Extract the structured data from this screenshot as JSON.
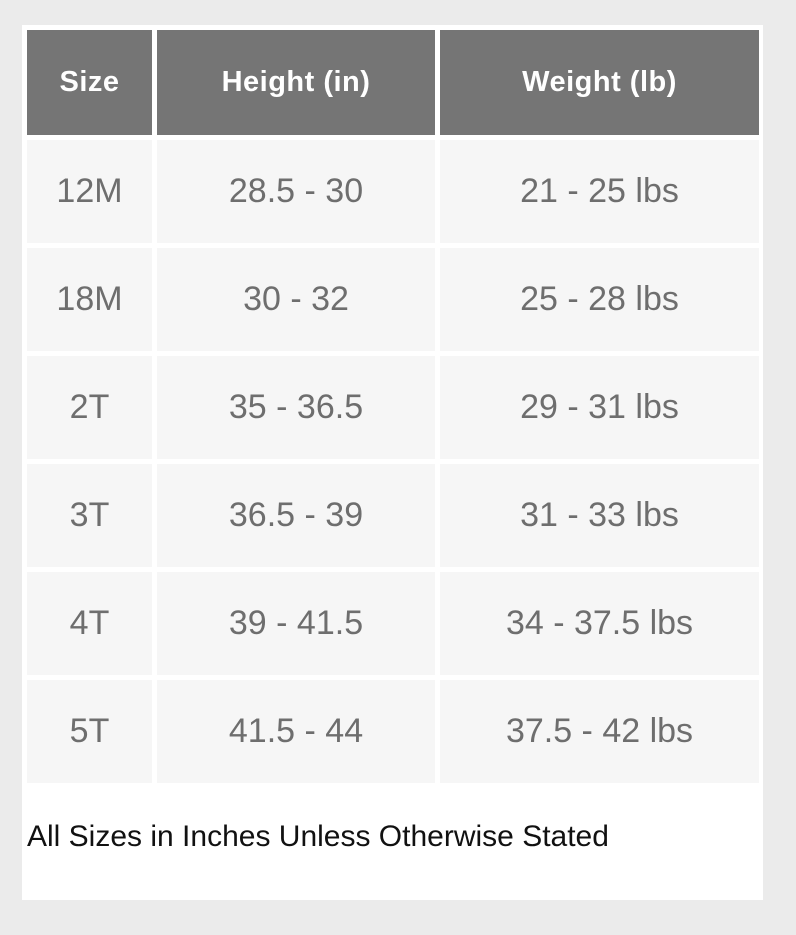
{
  "colors": {
    "page_bg": "#ebebeb",
    "card_bg": "#ffffff",
    "header_bg": "#757575",
    "header_text": "#ffffff",
    "cell_bg": "#f6f6f6",
    "cell_text": "#6e6e6e",
    "note_text": "#111111"
  },
  "table": {
    "columns": {
      "size": "Size",
      "height": "Height (in)",
      "weight": "Weight (lb)"
    },
    "rows": [
      {
        "size": "12M",
        "height": "28.5 - 30",
        "weight": "21 - 25 lbs"
      },
      {
        "size": "18M",
        "height": "30 - 32",
        "weight": "25 - 28 lbs"
      },
      {
        "size": "2T",
        "height": "35 - 36.5",
        "weight": "29 - 31 lbs"
      },
      {
        "size": "3T",
        "height": "36.5 - 39",
        "weight": "31 - 33 lbs"
      },
      {
        "size": "4T",
        "height": "39 - 41.5",
        "weight": "34 - 37.5 lbs"
      },
      {
        "size": "5T",
        "height": "41.5 - 44",
        "weight": "37.5 - 42 lbs"
      }
    ]
  },
  "note": "All Sizes in Inches Unless Otherwise Stated",
  "chart_data": {
    "type": "table",
    "columns": [
      "Size",
      "Height (in)",
      "Weight (lb)"
    ],
    "rows": [
      [
        "12M",
        "28.5 - 30",
        "21 - 25 lbs"
      ],
      [
        "18M",
        "30 - 32",
        "25 - 28 lbs"
      ],
      [
        "2T",
        "35 - 36.5",
        "29 - 31 lbs"
      ],
      [
        "3T",
        "36.5 - 39",
        "31 - 33 lbs"
      ],
      [
        "4T",
        "39 - 41.5",
        "34 - 37.5 lbs"
      ],
      [
        "5T",
        "41.5 - 44",
        "37.5 - 42 lbs"
      ]
    ],
    "title": "",
    "footnote": "All Sizes in Inches Unless Otherwise Stated"
  }
}
